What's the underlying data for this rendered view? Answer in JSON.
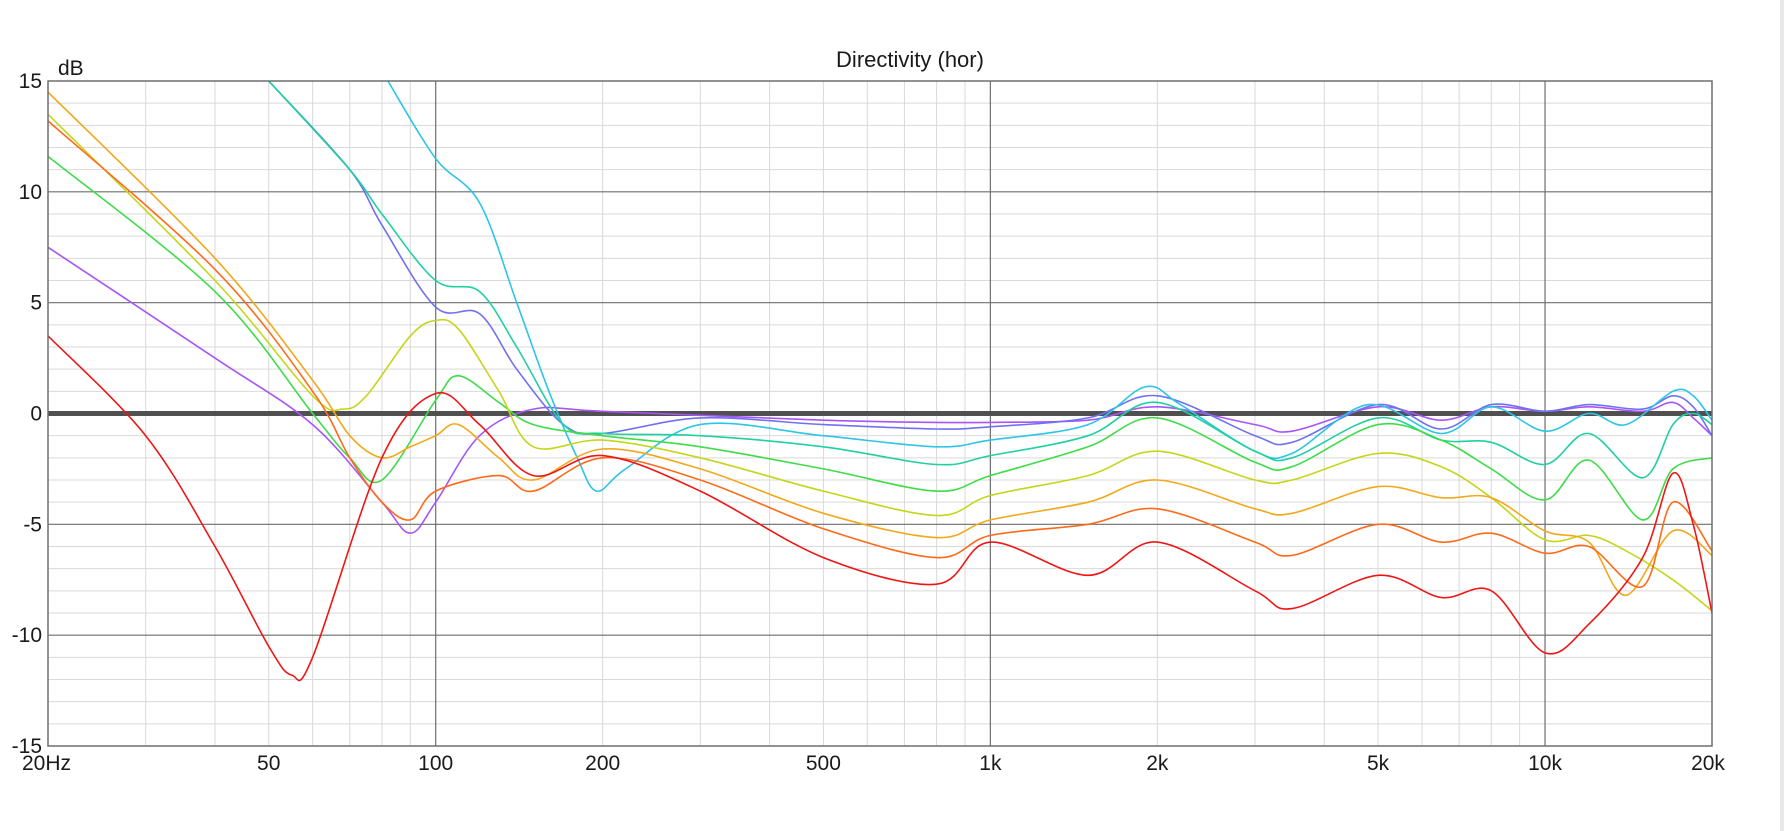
{
  "chart_data": {
    "type": "line",
    "title": "Directivity (hor)",
    "ylabel": "dB",
    "xlabel": "",
    "xscale": "log",
    "xlim": [
      20,
      20000
    ],
    "ylim": [
      -15,
      15
    ],
    "grid": true,
    "reference_line_y": 0,
    "x_tick_labels": [
      {
        "value": 20,
        "label": "20Hz"
      },
      {
        "value": 50,
        "label": "50"
      },
      {
        "value": 100,
        "label": "100"
      },
      {
        "value": 200,
        "label": "200"
      },
      {
        "value": 500,
        "label": "500"
      },
      {
        "value": 1000,
        "label": "1k"
      },
      {
        "value": 2000,
        "label": "2k"
      },
      {
        "value": 5000,
        "label": "5k"
      },
      {
        "value": 10000,
        "label": "10k"
      },
      {
        "value": 20000,
        "label": "20k"
      }
    ],
    "y_tick_labels": [
      {
        "value": 15,
        "label": "15"
      },
      {
        "value": 10,
        "label": "10"
      },
      {
        "value": 5,
        "label": "5"
      },
      {
        "value": 0,
        "label": "0"
      },
      {
        "value": -5,
        "label": "-5"
      },
      {
        "value": -10,
        "label": "-10"
      },
      {
        "value": -15,
        "label": "-15"
      }
    ],
    "series": [
      {
        "color": "#a855f7",
        "points": [
          [
            20,
            7.5
          ],
          [
            40,
            2.5
          ],
          [
            60,
            -0.5
          ],
          [
            80,
            -4
          ],
          [
            90,
            -5.4
          ],
          [
            100,
            -4
          ],
          [
            120,
            -1
          ],
          [
            150,
            0.2
          ],
          [
            200,
            0.1
          ],
          [
            500,
            -0.3
          ],
          [
            800,
            -0.4
          ],
          [
            1000,
            -0.4
          ],
          [
            1500,
            -0.3
          ],
          [
            2000,
            0.3
          ],
          [
            3000,
            -0.5
          ],
          [
            3500,
            -0.8
          ],
          [
            5000,
            0.3
          ],
          [
            6500,
            -0.3
          ],
          [
            8000,
            0.3
          ],
          [
            10000,
            0.1
          ],
          [
            12000,
            0.3
          ],
          [
            15000,
            0.1
          ],
          [
            17000,
            0.5
          ],
          [
            18500,
            -0.2
          ],
          [
            20000,
            -1
          ]
        ]
      },
      {
        "color": "#6f71f0",
        "points": [
          [
            50,
            15
          ],
          [
            70,
            11
          ],
          [
            80,
            8.5
          ],
          [
            100,
            4.8
          ],
          [
            120,
            4.5
          ],
          [
            140,
            2
          ],
          [
            170,
            -0.5
          ],
          [
            200,
            -0.9
          ],
          [
            300,
            -0.2
          ],
          [
            500,
            -0.5
          ],
          [
            800,
            -0.7
          ],
          [
            1000,
            -0.6
          ],
          [
            1500,
            -0.2
          ],
          [
            2000,
            0.8
          ],
          [
            3000,
            -1
          ],
          [
            3500,
            -1.3
          ],
          [
            5000,
            0.4
          ],
          [
            6500,
            -0.7
          ],
          [
            8000,
            0.4
          ],
          [
            10000,
            0.1
          ],
          [
            12000,
            0.4
          ],
          [
            15000,
            0.2
          ],
          [
            17000,
            0.8
          ],
          [
            18500,
            0.3
          ],
          [
            20000,
            -1
          ]
        ]
      },
      {
        "color": "#2cc5e8",
        "points": [
          [
            82,
            15
          ],
          [
            100,
            11.5
          ],
          [
            120,
            9.5
          ],
          [
            140,
            5
          ],
          [
            160,
            1
          ],
          [
            180,
            -2
          ],
          [
            195,
            -3.5
          ],
          [
            220,
            -2.5
          ],
          [
            300,
            -0.5
          ],
          [
            500,
            -1
          ],
          [
            800,
            -1.5
          ],
          [
            1000,
            -1.2
          ],
          [
            1500,
            -0.5
          ],
          [
            1900,
            1.2
          ],
          [
            2200,
            0.4
          ],
          [
            3000,
            -1.7
          ],
          [
            3500,
            -1.8
          ],
          [
            4800,
            0.4
          ],
          [
            6500,
            -0.9
          ],
          [
            8000,
            0.3
          ],
          [
            10000,
            -0.8
          ],
          [
            12000,
            0
          ],
          [
            14000,
            -0.5
          ],
          [
            17000,
            1
          ],
          [
            18500,
            0.8
          ],
          [
            20000,
            -0.3
          ]
        ]
      },
      {
        "color": "#1fd0a0",
        "points": [
          [
            50,
            15
          ],
          [
            70,
            11
          ],
          [
            80,
            9
          ],
          [
            100,
            6
          ],
          [
            120,
            5.5
          ],
          [
            140,
            3
          ],
          [
            170,
            -0.5
          ],
          [
            200,
            -0.9
          ],
          [
            300,
            -1
          ],
          [
            500,
            -1.5
          ],
          [
            800,
            -2.3
          ],
          [
            1000,
            -1.9
          ],
          [
            1500,
            -1
          ],
          [
            2000,
            0.5
          ],
          [
            3000,
            -1.7
          ],
          [
            3500,
            -2
          ],
          [
            5000,
            -0.2
          ],
          [
            6500,
            -1.2
          ],
          [
            8000,
            -1.3
          ],
          [
            10000,
            -2.3
          ],
          [
            12000,
            -0.9
          ],
          [
            15000,
            -2.9
          ],
          [
            17000,
            -0.5
          ],
          [
            18500,
            0
          ],
          [
            20000,
            -0.5
          ]
        ]
      },
      {
        "color": "#3fdc4a",
        "points": [
          [
            20,
            11.6
          ],
          [
            40,
            5.5
          ],
          [
            60,
            0
          ],
          [
            70,
            -2
          ],
          [
            80,
            -3
          ],
          [
            100,
            0.6
          ],
          [
            110,
            1.7
          ],
          [
            130,
            0.5
          ],
          [
            150,
            -0.5
          ],
          [
            200,
            -1
          ],
          [
            300,
            -1.5
          ],
          [
            500,
            -2.5
          ],
          [
            800,
            -3.5
          ],
          [
            1000,
            -2.8
          ],
          [
            1500,
            -1.5
          ],
          [
            2000,
            -0.2
          ],
          [
            3000,
            -2.2
          ],
          [
            3500,
            -2.4
          ],
          [
            5000,
            -0.5
          ],
          [
            6500,
            -1.2
          ],
          [
            8000,
            -2.5
          ],
          [
            10000,
            -3.9
          ],
          [
            12000,
            -2.1
          ],
          [
            15000,
            -4.8
          ],
          [
            17000,
            -2.5
          ],
          [
            20000,
            -2
          ]
        ]
      },
      {
        "color": "#c5d61a",
        "points": [
          [
            20,
            13.5
          ],
          [
            40,
            6
          ],
          [
            60,
            0.8
          ],
          [
            68,
            0.2
          ],
          [
            75,
            0.8
          ],
          [
            90,
            3.5
          ],
          [
            100,
            4.2
          ],
          [
            110,
            3.8
          ],
          [
            130,
            1
          ],
          [
            150,
            -1.5
          ],
          [
            200,
            -1.2
          ],
          [
            300,
            -2
          ],
          [
            500,
            -3.5
          ],
          [
            800,
            -4.6
          ],
          [
            1000,
            -3.7
          ],
          [
            1500,
            -2.8
          ],
          [
            2000,
            -1.7
          ],
          [
            3000,
            -3
          ],
          [
            3500,
            -3
          ],
          [
            5000,
            -1.8
          ],
          [
            6500,
            -2.4
          ],
          [
            8000,
            -3.8
          ],
          [
            10000,
            -5.7
          ],
          [
            12000,
            -5.5
          ],
          [
            14000,
            -6.2
          ],
          [
            17000,
            -7.5
          ],
          [
            20000,
            -8.9
          ]
        ]
      },
      {
        "color": "#f2a81a",
        "points": [
          [
            20,
            14.5
          ],
          [
            40,
            7
          ],
          [
            60,
            1.5
          ],
          [
            70,
            -1
          ],
          [
            80,
            -2
          ],
          [
            90,
            -1.5
          ],
          [
            100,
            -1
          ],
          [
            110,
            -0.5
          ],
          [
            130,
            -2
          ],
          [
            150,
            -3
          ],
          [
            200,
            -1.6
          ],
          [
            300,
            -2.5
          ],
          [
            500,
            -4.5
          ],
          [
            800,
            -5.6
          ],
          [
            1000,
            -4.8
          ],
          [
            1500,
            -4
          ],
          [
            2000,
            -3
          ],
          [
            3000,
            -4.3
          ],
          [
            3500,
            -4.5
          ],
          [
            5000,
            -3.3
          ],
          [
            6500,
            -3.8
          ],
          [
            8000,
            -3.8
          ],
          [
            10000,
            -5.3
          ],
          [
            12000,
            -5.8
          ],
          [
            14000,
            -8.2
          ],
          [
            17000,
            -5.3
          ],
          [
            20000,
            -6.4
          ]
        ]
      },
      {
        "color": "#ff6a1a",
        "points": [
          [
            20,
            13.2
          ],
          [
            40,
            6.5
          ],
          [
            60,
            1
          ],
          [
            70,
            -2
          ],
          [
            80,
            -4
          ],
          [
            90,
            -4.8
          ],
          [
            100,
            -3.5
          ],
          [
            130,
            -2.8
          ],
          [
            150,
            -3.5
          ],
          [
            200,
            -2
          ],
          [
            300,
            -3
          ],
          [
            500,
            -5.2
          ],
          [
            800,
            -6.5
          ],
          [
            1000,
            -5.5
          ],
          [
            1500,
            -5
          ],
          [
            2000,
            -4.3
          ],
          [
            3000,
            -5.8
          ],
          [
            3500,
            -6.4
          ],
          [
            5000,
            -5
          ],
          [
            6500,
            -5.8
          ],
          [
            8000,
            -5.4
          ],
          [
            10000,
            -6.3
          ],
          [
            12000,
            -6
          ],
          [
            15000,
            -7.8
          ],
          [
            17000,
            -4
          ],
          [
            20000,
            -6.2
          ]
        ]
      },
      {
        "color": "#f01515",
        "points": [
          [
            20,
            3.5
          ],
          [
            30,
            -1
          ],
          [
            40,
            -6
          ],
          [
            50,
            -10.5
          ],
          [
            55,
            -11.8
          ],
          [
            60,
            -11
          ],
          [
            80,
            -2
          ],
          [
            100,
            0.9
          ],
          [
            120,
            -0.5
          ],
          [
            150,
            -2.8
          ],
          [
            200,
            -1.9
          ],
          [
            300,
            -3.5
          ],
          [
            500,
            -6.5
          ],
          [
            800,
            -7.7
          ],
          [
            1000,
            -5.8
          ],
          [
            1500,
            -7.3
          ],
          [
            2000,
            -5.8
          ],
          [
            3000,
            -8
          ],
          [
            3500,
            -8.8
          ],
          [
            5000,
            -7.3
          ],
          [
            6500,
            -8.3
          ],
          [
            8000,
            -8
          ],
          [
            10000,
            -10.8
          ],
          [
            12000,
            -9.5
          ],
          [
            15000,
            -6.5
          ],
          [
            17000,
            -2.7
          ],
          [
            18500,
            -5
          ],
          [
            20000,
            -9
          ]
        ]
      }
    ]
  }
}
